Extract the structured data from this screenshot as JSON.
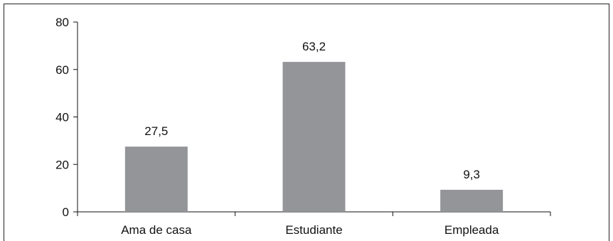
{
  "chart_data": {
    "type": "bar",
    "categories": [
      "Ama de casa",
      "Estudiante",
      "Empleada"
    ],
    "values": [
      27.5,
      63.2,
      9.3
    ],
    "data_labels": [
      "27,5",
      "63,2",
      "9,3"
    ],
    "title": "",
    "xlabel": "",
    "ylabel": "",
    "ylim": [
      0,
      80
    ],
    "yticks": [
      0,
      20,
      40,
      60,
      80
    ],
    "ytick_labels": [
      "0",
      "20",
      "40",
      "60",
      "80"
    ],
    "grid": false,
    "legend": "none",
    "bar_color": "#939598"
  }
}
